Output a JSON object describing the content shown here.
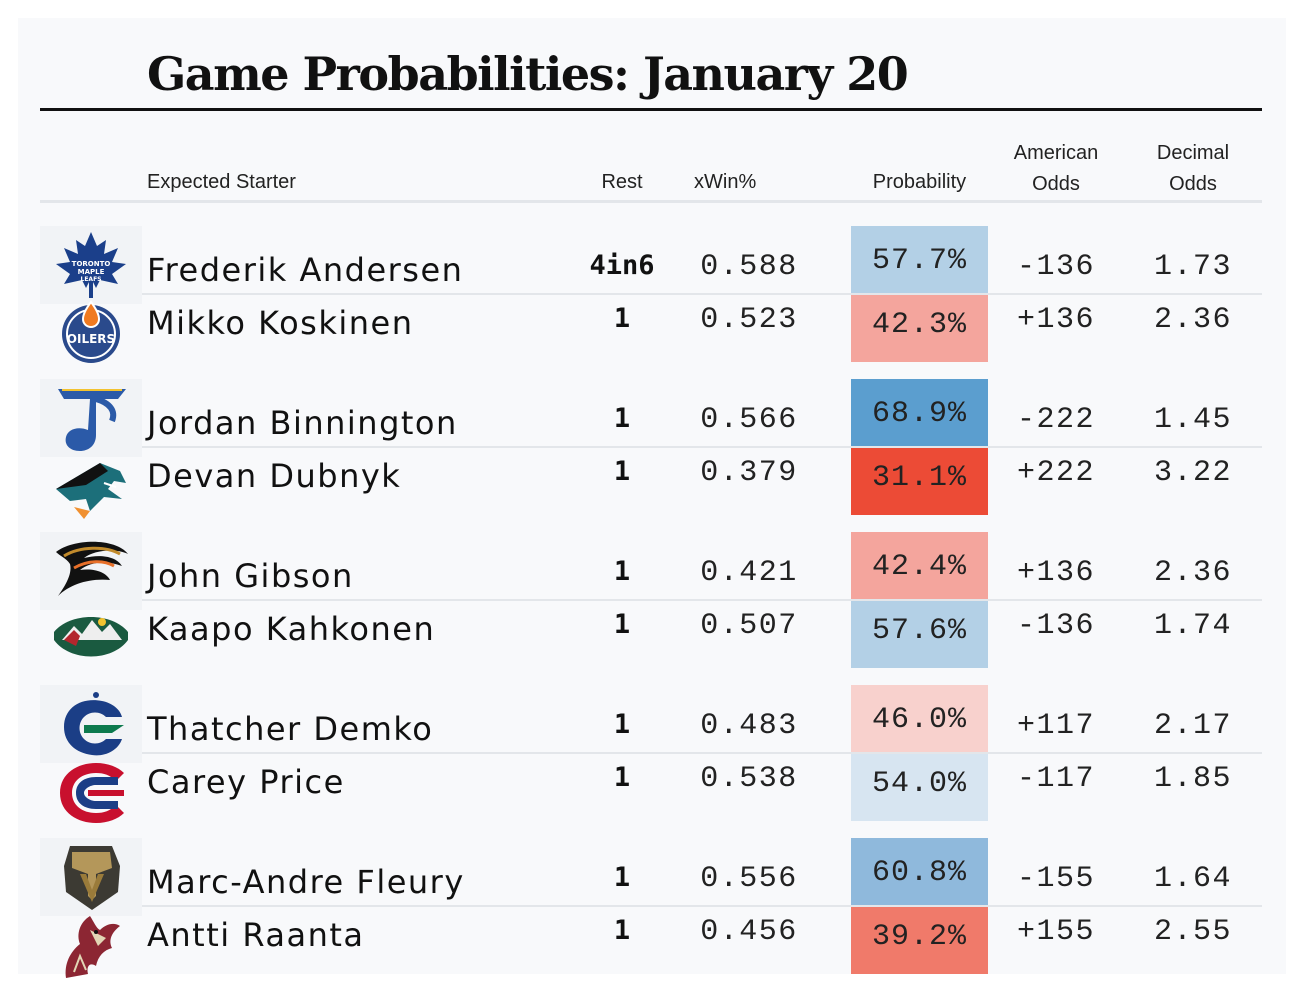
{
  "title": "Game Probabilities: January 20",
  "columns": {
    "starter": "Expected Starter",
    "rest": "Rest",
    "xwin": "xWin%",
    "probability": "Probability",
    "american_line1": "American",
    "american_line2": "Odds",
    "decimal_line1": "Decimal",
    "decimal_line2": "Odds"
  },
  "colors": {
    "prob_blue_dark": "#5b9ecf",
    "prob_blue_mid": "#8fb9dc",
    "prob_blue_light": "#b3d0e6",
    "prob_blue_pale": "#d7e5f1",
    "prob_red_dark": "#ec4b36",
    "prob_red_mid": "#f07a6a",
    "prob_red_light": "#f4a59d",
    "prob_red_pale": "#f8d1cd"
  },
  "games": [
    {
      "home": {
        "team_icon": "toronto-maple-leafs-logo",
        "starter": "Frederik Andersen",
        "rest": "4in6",
        "xwin": "0.588",
        "probability": "57.7%",
        "american": "-136",
        "decimal": "1.73"
      },
      "away": {
        "team_icon": "edmonton-oilers-logo",
        "starter": "Mikko Koskinen",
        "rest": "1",
        "xwin": "0.523",
        "probability": "42.3%",
        "american": "+136",
        "decimal": "2.36"
      }
    },
    {
      "home": {
        "team_icon": "st-louis-blues-logo",
        "starter": "Jordan Binnington",
        "rest": "1",
        "xwin": "0.566",
        "probability": "68.9%",
        "american": "-222",
        "decimal": "1.45"
      },
      "away": {
        "team_icon": "san-jose-sharks-logo",
        "starter": "Devan Dubnyk",
        "rest": "1",
        "xwin": "0.379",
        "probability": "31.1%",
        "american": "+222",
        "decimal": "3.22"
      }
    },
    {
      "home": {
        "team_icon": "anaheim-ducks-logo",
        "starter": "John Gibson",
        "rest": "1",
        "xwin": "0.421",
        "probability": "42.4%",
        "american": "+136",
        "decimal": "2.36"
      },
      "away": {
        "team_icon": "minnesota-wild-logo",
        "starter": "Kaapo Kahkonen",
        "rest": "1",
        "xwin": "0.507",
        "probability": "57.6%",
        "american": "-136",
        "decimal": "1.74"
      }
    },
    {
      "home": {
        "team_icon": "vancouver-canucks-logo",
        "starter": "Thatcher Demko",
        "rest": "1",
        "xwin": "0.483",
        "probability": "46.0%",
        "american": "+117",
        "decimal": "2.17"
      },
      "away": {
        "team_icon": "montreal-canadiens-logo",
        "starter": "Carey Price",
        "rest": "1",
        "xwin": "0.538",
        "probability": "54.0%",
        "american": "-117",
        "decimal": "1.85"
      }
    },
    {
      "home": {
        "team_icon": "vegas-golden-knights-logo",
        "starter": "Marc-Andre Fleury",
        "rest": "1",
        "xwin": "0.556",
        "probability": "60.8%",
        "american": "-155",
        "decimal": "1.64"
      },
      "away": {
        "team_icon": "arizona-coyotes-logo",
        "starter": "Antti Raanta",
        "rest": "1",
        "xwin": "0.456",
        "probability": "39.2%",
        "american": "+155",
        "decimal": "2.55"
      }
    }
  ],
  "chart_data": {
    "type": "table",
    "title": "Game Probabilities: January 20",
    "columns": [
      "Expected Starter",
      "Rest",
      "xWin%",
      "Probability",
      "American Odds",
      "Decimal Odds"
    ],
    "rows": [
      [
        "Frederik Andersen",
        "4in6",
        0.588,
        57.7,
        -136,
        1.73
      ],
      [
        "Mikko Koskinen",
        "1",
        0.523,
        42.3,
        136,
        2.36
      ],
      [
        "Jordan Binnington",
        "1",
        0.566,
        68.9,
        -222,
        1.45
      ],
      [
        "Devan Dubnyk",
        "1",
        0.379,
        31.1,
        222,
        3.22
      ],
      [
        "John Gibson",
        "1",
        0.421,
        42.4,
        136,
        2.36
      ],
      [
        "Kaapo Kahkonen",
        "1",
        0.507,
        57.6,
        -136,
        1.74
      ],
      [
        "Thatcher Demko",
        "1",
        0.483,
        46.0,
        117,
        2.17
      ],
      [
        "Carey Price",
        "1",
        0.538,
        54.0,
        -117,
        1.85
      ],
      [
        "Marc-Andre Fleury",
        "1",
        0.556,
        60.8,
        -155,
        1.64
      ],
      [
        "Antti Raanta",
        "1",
        0.456,
        39.2,
        155,
        2.55
      ]
    ]
  }
}
